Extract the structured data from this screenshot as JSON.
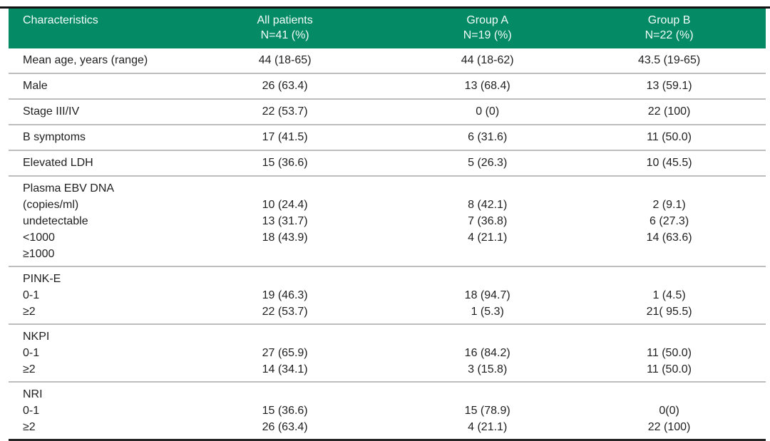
{
  "colors": {
    "header_bg": "#058a66",
    "header_text": "#f2fcf8",
    "body_text": "#1f1f1f",
    "row_line": "#bdbdbd",
    "top_line": "#141414",
    "bottom_line": "#262626"
  },
  "table": {
    "columns": [
      {
        "label": "Characteristics",
        "sub": ""
      },
      {
        "label": "All patients",
        "sub": "N=41 (%)"
      },
      {
        "label": "Group A",
        "sub": "N=19 (%)"
      },
      {
        "label": "Group B",
        "sub": "N=22 (%)"
      }
    ],
    "rows": [
      {
        "label": "Mean age, years (range)",
        "values": [
          "44 (18-65)",
          "44 (18-62)",
          "43.5 (19-65)"
        ]
      },
      {
        "label": "Male",
        "values": [
          "26 (63.4)",
          "13 (68.4)",
          "13 (59.1)"
        ]
      },
      {
        "label": "Stage III/IV",
        "values": [
          "22 (53.7)",
          "0 (0)",
          "22 (100)"
        ]
      },
      {
        "label": "B symptoms",
        "values": [
          "17 (41.5)",
          "6 (31.6)",
          "11 (50.0)"
        ]
      },
      {
        "label": "Elevated LDH",
        "values": [
          "15 (36.6)",
          "5 (26.3)",
          "10 (45.5)"
        ]
      },
      {
        "label": "Plasma EBV DNA (copies/ml)",
        "subrows": [
          {
            "label": "undetectable",
            "values": [
              "10 (24.4)",
              "8 (42.1)",
              "2 (9.1)"
            ]
          },
          {
            "label": "<1000",
            "values": [
              "13 (31.7)",
              "7 (36.8)",
              "6 (27.3)"
            ]
          },
          {
            "label": "≥1000",
            "values": [
              "18 (43.9)",
              "4 (21.1)",
              "14 (63.6)"
            ]
          }
        ]
      },
      {
        "label": "PINK-E",
        "subrows": [
          {
            "label": "0-1",
            "values": [
              "19 (46.3)",
              "18 (94.7)",
              "1 (4.5)"
            ]
          },
          {
            "label": "≥2",
            "values": [
              "22 (53.7)",
              "1 (5.3)",
              "21( 95.5)"
            ]
          }
        ]
      },
      {
        "label": "NKPI",
        "subrows": [
          {
            "label": "0-1",
            "values": [
              "27 (65.9)",
              "16 (84.2)",
              "11 (50.0)"
            ]
          },
          {
            "label": "≥2",
            "values": [
              "14 (34.1)",
              "3 (15.8)",
              "11 (50.0)"
            ]
          }
        ]
      },
      {
        "label": "NRI",
        "subrows": [
          {
            "label": "0-1",
            "values": [
              "15 (36.6)",
              "15 (78.9)",
              "0(0)"
            ]
          },
          {
            "label": "≥2",
            "values": [
              "26 (63.4)",
              "4 (21.1)",
              "22 (100)"
            ]
          }
        ]
      }
    ]
  }
}
